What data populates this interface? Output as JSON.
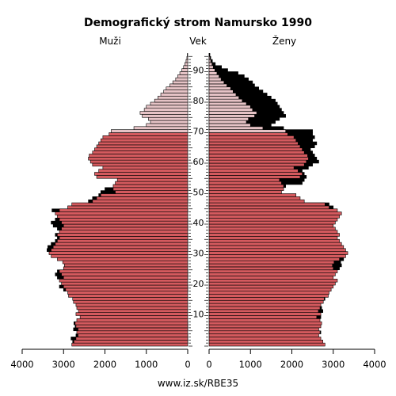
{
  "chart_data": {
    "type": "bar",
    "orientation": "horizontal-pyramid",
    "title": "Demografický strom Namursko 1990",
    "left_label": "Muži",
    "center_label": "Vek",
    "right_label": "Ženy",
    "footer": "www.iz.sk/RBE35",
    "x_ticks_left": [
      "4000",
      "3000",
      "2000",
      "1000",
      "0"
    ],
    "x_ticks_right": [
      "0",
      "1000",
      "2000",
      "3000",
      "4000"
    ],
    "age_ticks": [
      "10",
      "20",
      "30",
      "40",
      "50",
      "60",
      "70",
      "80",
      "90"
    ],
    "xlim": [
      0,
      4000
    ],
    "age_range": [
      0,
      95
    ],
    "colors": {
      "male_bar": "#d45a5e",
      "male_bar_old": "#e6c3c6",
      "female_bar": "#d45a5e",
      "female_bar_old": "#e6c3c6",
      "excess": "#000000",
      "outline": "#000000"
    },
    "ages": [
      0,
      1,
      2,
      3,
      4,
      5,
      6,
      7,
      8,
      9,
      10,
      11,
      12,
      13,
      14,
      15,
      16,
      17,
      18,
      19,
      20,
      21,
      22,
      23,
      24,
      25,
      26,
      27,
      28,
      29,
      30,
      31,
      32,
      33,
      34,
      35,
      36,
      37,
      38,
      39,
      40,
      41,
      42,
      43,
      44,
      45,
      46,
      47,
      48,
      49,
      50,
      51,
      52,
      53,
      54,
      55,
      56,
      57,
      58,
      59,
      60,
      61,
      62,
      63,
      64,
      65,
      66,
      67,
      68,
      69,
      70,
      71,
      72,
      73,
      74,
      75,
      76,
      77,
      78,
      79,
      80,
      81,
      82,
      83,
      84,
      85,
      86,
      87,
      88,
      89,
      90,
      91,
      92,
      93,
      94,
      95
    ],
    "series": [
      {
        "name": "Muži",
        "values": [
          2800,
          2780,
          2820,
          2700,
          2680,
          2760,
          2720,
          2750,
          2680,
          2600,
          2700,
          2640,
          2680,
          2700,
          2760,
          2780,
          2880,
          2900,
          3000,
          3100,
          3050,
          3100,
          3150,
          3200,
          3150,
          3000,
          2980,
          3020,
          3150,
          3300,
          3350,
          3400,
          3380,
          3300,
          3200,
          3150,
          3200,
          3100,
          3150,
          3250,
          3300,
          3200,
          3150,
          3200,
          3280,
          2900,
          2800,
          2400,
          2300,
          2150,
          2100,
          2000,
          1800,
          1750,
          1700,
          2200,
          2250,
          2150,
          2050,
          2300,
          2350,
          2400,
          2380,
          2300,
          2250,
          2200,
          2150,
          2100,
          2050,
          1900,
          1850,
          1300,
          1000,
          900,
          950,
          1100,
          1150,
          1050,
          1000,
          900,
          800,
          720,
          650,
          580,
          520,
          430,
          360,
          290,
          240,
          190,
          140,
          100,
          70,
          40,
          20,
          10
        ]
      },
      {
        "name": "Ženy",
        "values": [
          2800,
          2750,
          2700,
          2650,
          2700,
          2650,
          2700,
          2720,
          2680,
          2700,
          2700,
          2750,
          2720,
          2700,
          2760,
          2800,
          2880,
          2900,
          2950,
          3000,
          3050,
          3100,
          3000,
          3050,
          3100,
          3150,
          3200,
          3180,
          3250,
          3300,
          3350,
          3300,
          3250,
          3200,
          3150,
          3100,
          3150,
          3100,
          3050,
          3000,
          3050,
          3100,
          3150,
          3200,
          3100,
          3000,
          2900,
          2300,
          2200,
          2100,
          1750,
          1800,
          1850,
          2250,
          2300,
          2350,
          2300,
          2250,
          2400,
          2500,
          2650,
          2600,
          2550,
          2500,
          2450,
          2550,
          2600,
          2500,
          2550,
          2500,
          2500,
          1800,
          1500,
          1600,
          1700,
          1850,
          1800,
          1750,
          1700,
          1650,
          1600,
          1500,
          1400,
          1300,
          1200,
          1100,
          1050,
          950,
          850,
          700,
          450,
          300,
          150,
          80,
          40,
          20
        ]
      }
    ]
  }
}
